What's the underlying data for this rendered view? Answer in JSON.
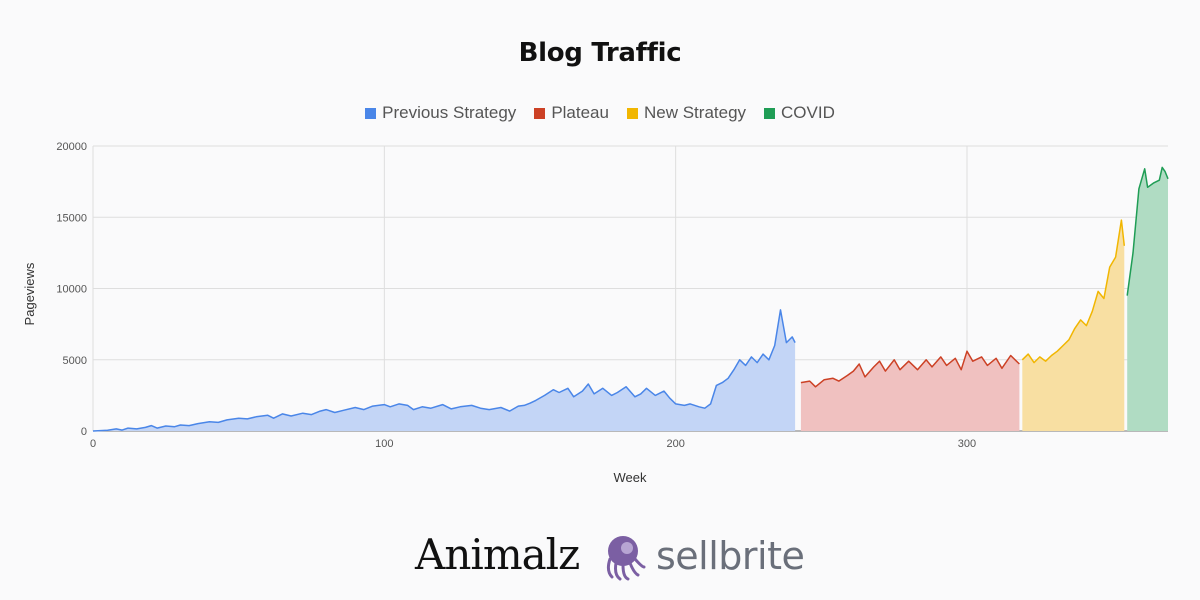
{
  "chart_data": {
    "type": "area",
    "title": "Blog Traffic",
    "xlabel": "Week",
    "ylabel": "Pageviews",
    "xlim": [
      0,
      369
    ],
    "ylim": [
      0,
      20000
    ],
    "x_ticks": [
      0,
      100,
      200,
      300
    ],
    "y_ticks": [
      0,
      5000,
      10000,
      15000,
      20000
    ],
    "grid": true,
    "legend_position": "top",
    "series": [
      {
        "name": "Previous Strategy",
        "color": "#4a86e8",
        "fill": "#c3d5f6",
        "x_range": [
          0,
          241
        ],
        "points": [
          [
            0,
            0
          ],
          [
            5,
            50
          ],
          [
            8,
            150
          ],
          [
            10,
            60
          ],
          [
            12,
            200
          ],
          [
            15,
            150
          ],
          [
            18,
            250
          ],
          [
            20,
            380
          ],
          [
            22,
            200
          ],
          [
            25,
            350
          ],
          [
            28,
            300
          ],
          [
            30,
            420
          ],
          [
            33,
            380
          ],
          [
            36,
            520
          ],
          [
            40,
            650
          ],
          [
            43,
            600
          ],
          [
            46,
            780
          ],
          [
            50,
            900
          ],
          [
            53,
            850
          ],
          [
            56,
            1000
          ],
          [
            60,
            1100
          ],
          [
            62,
            900
          ],
          [
            65,
            1200
          ],
          [
            68,
            1050
          ],
          [
            72,
            1250
          ],
          [
            75,
            1150
          ],
          [
            78,
            1400
          ],
          [
            80,
            1500
          ],
          [
            83,
            1300
          ],
          [
            86,
            1450
          ],
          [
            90,
            1650
          ],
          [
            93,
            1500
          ],
          [
            96,
            1750
          ],
          [
            100,
            1850
          ],
          [
            102,
            1700
          ],
          [
            105,
            1900
          ],
          [
            108,
            1800
          ],
          [
            110,
            1500
          ],
          [
            113,
            1700
          ],
          [
            116,
            1600
          ],
          [
            120,
            1850
          ],
          [
            123,
            1550
          ],
          [
            126,
            1700
          ],
          [
            130,
            1800
          ],
          [
            133,
            1600
          ],
          [
            136,
            1500
          ],
          [
            140,
            1650
          ],
          [
            143,
            1400
          ],
          [
            146,
            1750
          ],
          [
            148,
            1800
          ],
          [
            150,
            1950
          ],
          [
            152,
            2150
          ],
          [
            155,
            2500
          ],
          [
            158,
            2900
          ],
          [
            160,
            2700
          ],
          [
            163,
            3000
          ],
          [
            165,
            2400
          ],
          [
            168,
            2800
          ],
          [
            170,
            3300
          ],
          [
            172,
            2600
          ],
          [
            175,
            3000
          ],
          [
            178,
            2500
          ],
          [
            180,
            2700
          ],
          [
            183,
            3100
          ],
          [
            186,
            2400
          ],
          [
            188,
            2600
          ],
          [
            190,
            3000
          ],
          [
            193,
            2500
          ],
          [
            196,
            2800
          ],
          [
            198,
            2300
          ],
          [
            200,
            1900
          ],
          [
            203,
            1800
          ],
          [
            205,
            1900
          ],
          [
            208,
            1700
          ],
          [
            210,
            1600
          ],
          [
            212,
            1900
          ],
          [
            214,
            3200
          ],
          [
            216,
            3400
          ],
          [
            218,
            3700
          ],
          [
            220,
            4300
          ],
          [
            222,
            5000
          ],
          [
            224,
            4600
          ],
          [
            226,
            5200
          ],
          [
            228,
            4800
          ],
          [
            230,
            5400
          ],
          [
            232,
            5000
          ],
          [
            234,
            6000
          ],
          [
            236,
            8500
          ],
          [
            238,
            6200
          ],
          [
            240,
            6600
          ],
          [
            241,
            6200
          ]
        ]
      },
      {
        "name": "Plateau",
        "color": "#cc4125",
        "fill": "#f0c1c0",
        "x_range": [
          243,
          318
        ],
        "points": [
          [
            243,
            3400
          ],
          [
            246,
            3500
          ],
          [
            248,
            3100
          ],
          [
            251,
            3600
          ],
          [
            254,
            3700
          ],
          [
            256,
            3500
          ],
          [
            259,
            3900
          ],
          [
            261,
            4200
          ],
          [
            263,
            4700
          ],
          [
            265,
            3800
          ],
          [
            268,
            4500
          ],
          [
            270,
            4900
          ],
          [
            272,
            4200
          ],
          [
            275,
            5000
          ],
          [
            277,
            4300
          ],
          [
            280,
            4900
          ],
          [
            283,
            4300
          ],
          [
            286,
            5000
          ],
          [
            288,
            4500
          ],
          [
            291,
            5200
          ],
          [
            293,
            4600
          ],
          [
            296,
            5100
          ],
          [
            298,
            4300
          ],
          [
            300,
            5600
          ],
          [
            302,
            4900
          ],
          [
            305,
            5200
          ],
          [
            307,
            4600
          ],
          [
            310,
            5100
          ],
          [
            312,
            4400
          ],
          [
            315,
            5300
          ],
          [
            318,
            4700
          ]
        ]
      },
      {
        "name": "New Strategy",
        "color": "#f1b601",
        "fill": "#f8dfa2",
        "x_range": [
          319,
          354
        ],
        "points": [
          [
            319,
            5000
          ],
          [
            321,
            5400
          ],
          [
            323,
            4800
          ],
          [
            325,
            5200
          ],
          [
            327,
            4900
          ],
          [
            329,
            5300
          ],
          [
            331,
            5600
          ],
          [
            333,
            6000
          ],
          [
            335,
            6400
          ],
          [
            337,
            7200
          ],
          [
            339,
            7800
          ],
          [
            341,
            7400
          ],
          [
            343,
            8400
          ],
          [
            345,
            9800
          ],
          [
            347,
            9300
          ],
          [
            349,
            11500
          ],
          [
            351,
            12200
          ],
          [
            353,
            14800
          ],
          [
            354,
            13000
          ]
        ]
      },
      {
        "name": "COVID",
        "color": "#1f9d55",
        "fill": "#b0dcc3",
        "x_range": [
          355,
          369
        ],
        "points": [
          [
            355,
            9500
          ],
          [
            357,
            12500
          ],
          [
            359,
            17000
          ],
          [
            361,
            18400
          ],
          [
            362,
            17100
          ],
          [
            364,
            17400
          ],
          [
            366,
            17600
          ],
          [
            367,
            18500
          ],
          [
            368,
            18200
          ],
          [
            369,
            17700
          ]
        ]
      }
    ]
  },
  "legend": [
    "Previous Strategy",
    "Plateau",
    "New Strategy",
    "COVID"
  ],
  "logos": {
    "animalz": "Animalz",
    "sellbrite": "sellbrite"
  }
}
